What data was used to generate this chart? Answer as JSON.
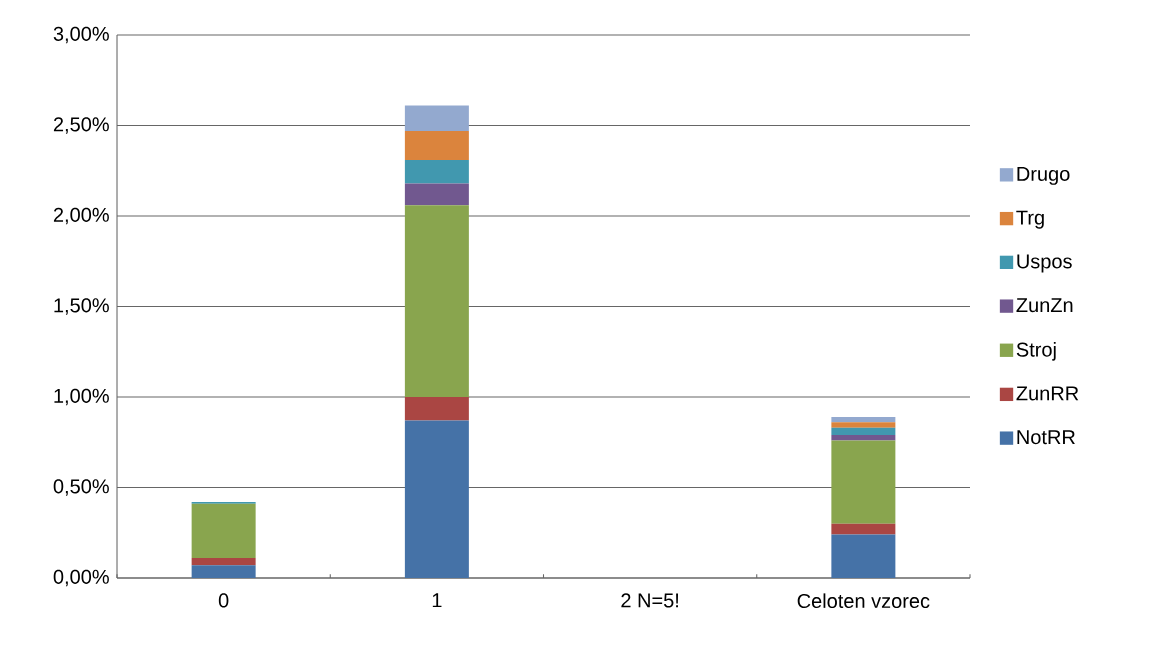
{
  "chart_data": {
    "type": "bar",
    "stacked": true,
    "categories": [
      "0",
      "1",
      "2 N=5!",
      "Celoten vzorec"
    ],
    "series": [
      {
        "name": "NotRR",
        "color": "#4572a7",
        "values": [
          0.07,
          0.87,
          0,
          0.24
        ]
      },
      {
        "name": "ZunRR",
        "color": "#aa4643",
        "values": [
          0.04,
          0.13,
          0,
          0.06
        ]
      },
      {
        "name": "Stroj",
        "color": "#89a54e",
        "values": [
          0.3,
          1.06,
          0,
          0.46
        ]
      },
      {
        "name": "ZunZn",
        "color": "#71588f",
        "values": [
          0,
          0.12,
          0,
          0.03
        ]
      },
      {
        "name": "Uspos",
        "color": "#4198af",
        "values": [
          0.01,
          0.13,
          0,
          0.04
        ]
      },
      {
        "name": "Trg",
        "color": "#db843d",
        "values": [
          0,
          0.16,
          0,
          0.03
        ]
      },
      {
        "name": "Drugo",
        "color": "#93a9cf",
        "values": [
          0,
          0.14,
          0,
          0.03
        ]
      }
    ],
    "ylim": [
      0,
      3
    ],
    "yticks": [
      {
        "value": 0,
        "label": "0,00%"
      },
      {
        "value": 0.5,
        "label": "0,50%"
      },
      {
        "value": 1,
        "label": "1,00%"
      },
      {
        "value": 1.5,
        "label": "1,50%"
      },
      {
        "value": 2,
        "label": "2,00%"
      },
      {
        "value": 2.5,
        "label": "2,50%"
      },
      {
        "value": 3,
        "label": "3,00%"
      }
    ],
    "grid": "y",
    "legend": "right"
  }
}
